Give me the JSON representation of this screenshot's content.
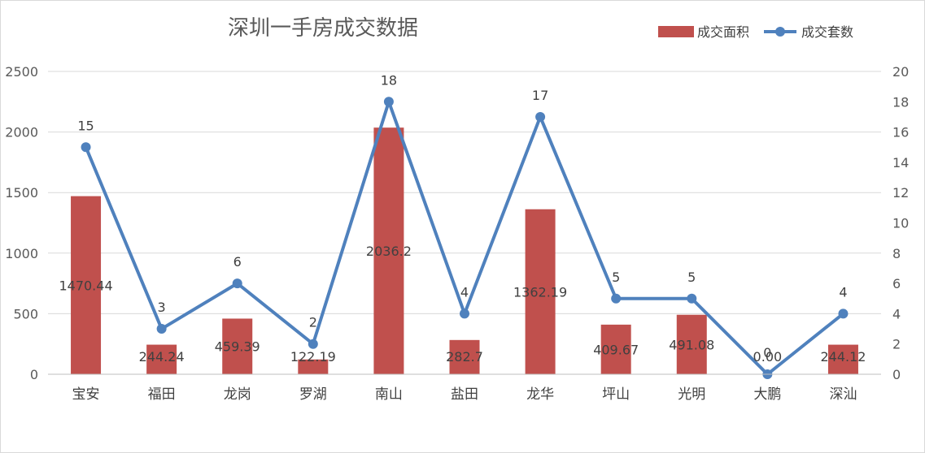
{
  "chart_data": {
    "type": "bar",
    "title": "深圳一手房成交数据",
    "categories": [
      "宝安",
      "福田",
      "龙岗",
      "罗湖",
      "南山",
      "盐田",
      "龙华",
      "坪山",
      "光明",
      "大鹏",
      "深汕"
    ],
    "series": [
      {
        "name": "成交面积",
        "chart_type": "bar",
        "axis": "left",
        "color": "#C0504D",
        "values": [
          1470.44,
          244.24,
          459.39,
          122.19,
          2036.2,
          282.7,
          1362.19,
          409.67,
          491.08,
          0.0,
          244.12
        ],
        "data_labels": [
          "1470.44",
          "244.24",
          "459.39",
          "122.19",
          "2036.2",
          "282.7",
          "1362.19",
          "409.67",
          "491.08",
          "0.00",
          "244.12"
        ]
      },
      {
        "name": "成交套数",
        "chart_type": "line",
        "axis": "right",
        "color": "#4F81BD",
        "values": [
          15,
          3,
          6,
          2,
          18,
          4,
          17,
          5,
          5,
          0,
          4
        ],
        "data_labels": [
          "15",
          "3",
          "6",
          "2",
          "18",
          "4",
          "17",
          "5",
          "5",
          "0",
          "4"
        ]
      }
    ],
    "y_left": {
      "lim": [
        0,
        2500
      ],
      "ticks": [
        "0",
        "500",
        "1000",
        "1500",
        "2000",
        "2500"
      ]
    },
    "y_right": {
      "lim": [
        0,
        20
      ],
      "ticks": [
        "0",
        "2",
        "4",
        "6",
        "8",
        "10",
        "12",
        "14",
        "16",
        "18",
        "20"
      ]
    },
    "grid": true,
    "legend_position": "top-right",
    "gridline_color": "#d9d9d9"
  }
}
